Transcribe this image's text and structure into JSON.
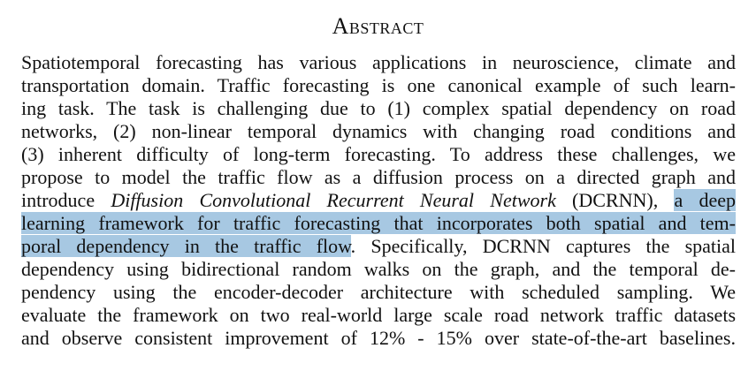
{
  "heading": "Abstract",
  "lines": [
    "Spatiotemporal forecasting has various applications in neuroscience, climate and",
    "transportation domain. Traffic forecasting is one canonical example of such learn-",
    "ing task. The task is challenging due to (1) complex spatial dependency on road",
    "networks, (2) non-linear temporal dynamics with changing road conditions and",
    "(3) inherent difficulty of long-term forecasting. To address these challenges, we",
    "propose to model the traffic flow as a diffusion process on a directed graph and"
  ],
  "line7": {
    "before": "introduce ",
    "model_name": "Diffusion Convolutional Recurrent Neural Network",
    "after": " (DCRNN), ",
    "highlight": "a deep"
  },
  "line8": {
    "highlight": "learning framework for traffic forecasting that incorporates both spatial and tem-"
  },
  "line9": {
    "highlight": "poral dependency in the traffic flow",
    "after": ". Specifically, DCRNN captures the spatial"
  },
  "lines_tail": [
    "dependency using bidirectional random walks on the graph, and the temporal de-",
    "pendency using the encoder-decoder architecture with scheduled sampling. We",
    "evaluate the framework on two real-world large scale road network traffic datasets",
    "and observe consistent improvement of 12% - 15% over state-of-the-art baselines."
  ],
  "colors": {
    "highlight": "#a7c8e2",
    "text": "#111111"
  }
}
